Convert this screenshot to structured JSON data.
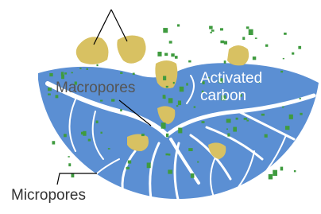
{
  "labels": {
    "macropores": "Macropores",
    "activated": "Activated",
    "carbon": "carbon",
    "micropores": "Micropores"
  }
}
